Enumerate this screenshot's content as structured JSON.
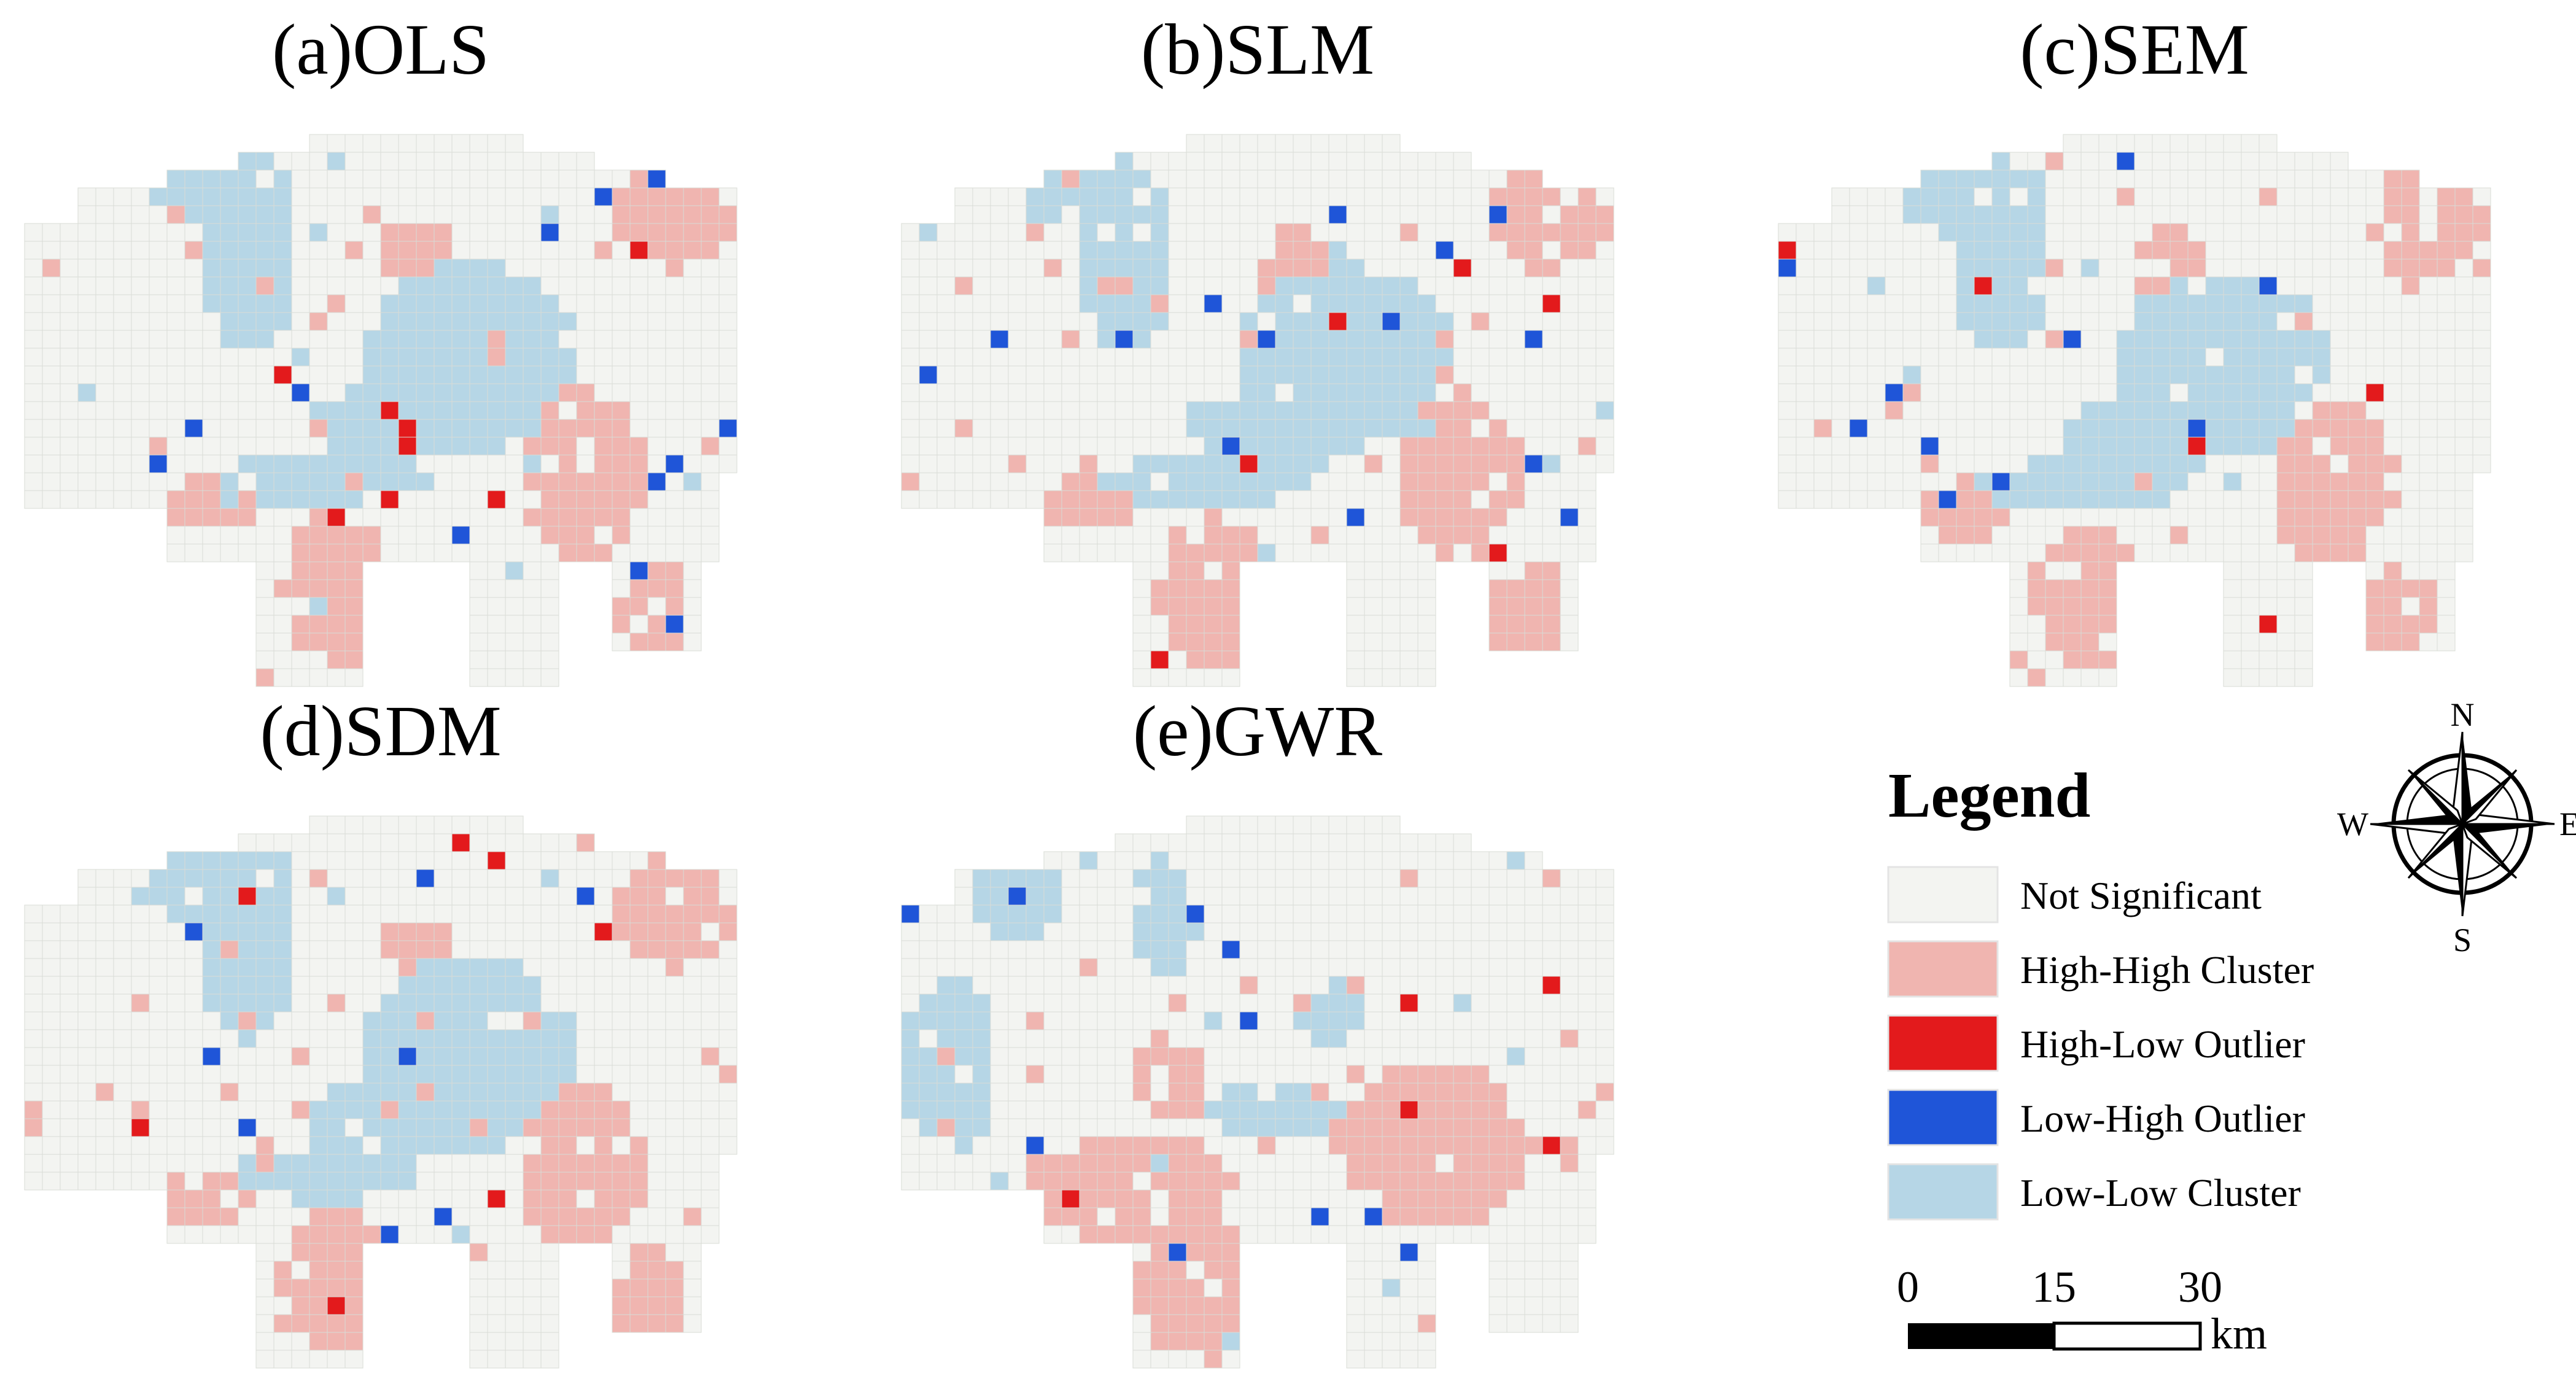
{
  "panels": [
    {
      "id": "ols",
      "title": "(a)OLS",
      "seed": 11
    },
    {
      "id": "slm",
      "title": "(b)SLM",
      "seed": 23
    },
    {
      "id": "sem",
      "title": "(c)SEM",
      "seed": 37
    },
    {
      "id": "sdm",
      "title": "(d)SDM",
      "seed": 51
    },
    {
      "id": "gwr",
      "title": "(e)GWR",
      "seed": 73
    }
  ],
  "legend": {
    "title": "Legend",
    "items": [
      {
        "label": "Not Significant",
        "color": "#f3f4f1"
      },
      {
        "label": "High-High Cluster",
        "color": "#f0b5b0"
      },
      {
        "label": "High-Low Outlier",
        "color": "#e31a1c"
      },
      {
        "label": "Low-High Outlier",
        "color": "#1f55d8"
      },
      {
        "label": "Low-Low Cluster",
        "color": "#b6d6e6"
      }
    ]
  },
  "compass": {
    "n": "N",
    "s": "S",
    "e": "E",
    "w": "W"
  },
  "scale_bar": {
    "ticks": [
      "0",
      "15",
      "30"
    ],
    "unit": "km"
  },
  "colors": {
    "not_significant": "#f3f4f1",
    "high_high": "#f0b5b0",
    "high_low": "#e31a1c",
    "low_high": "#1f55d8",
    "low_low": "#b6d6e6",
    "grid_line": "#d9dcd6"
  }
}
